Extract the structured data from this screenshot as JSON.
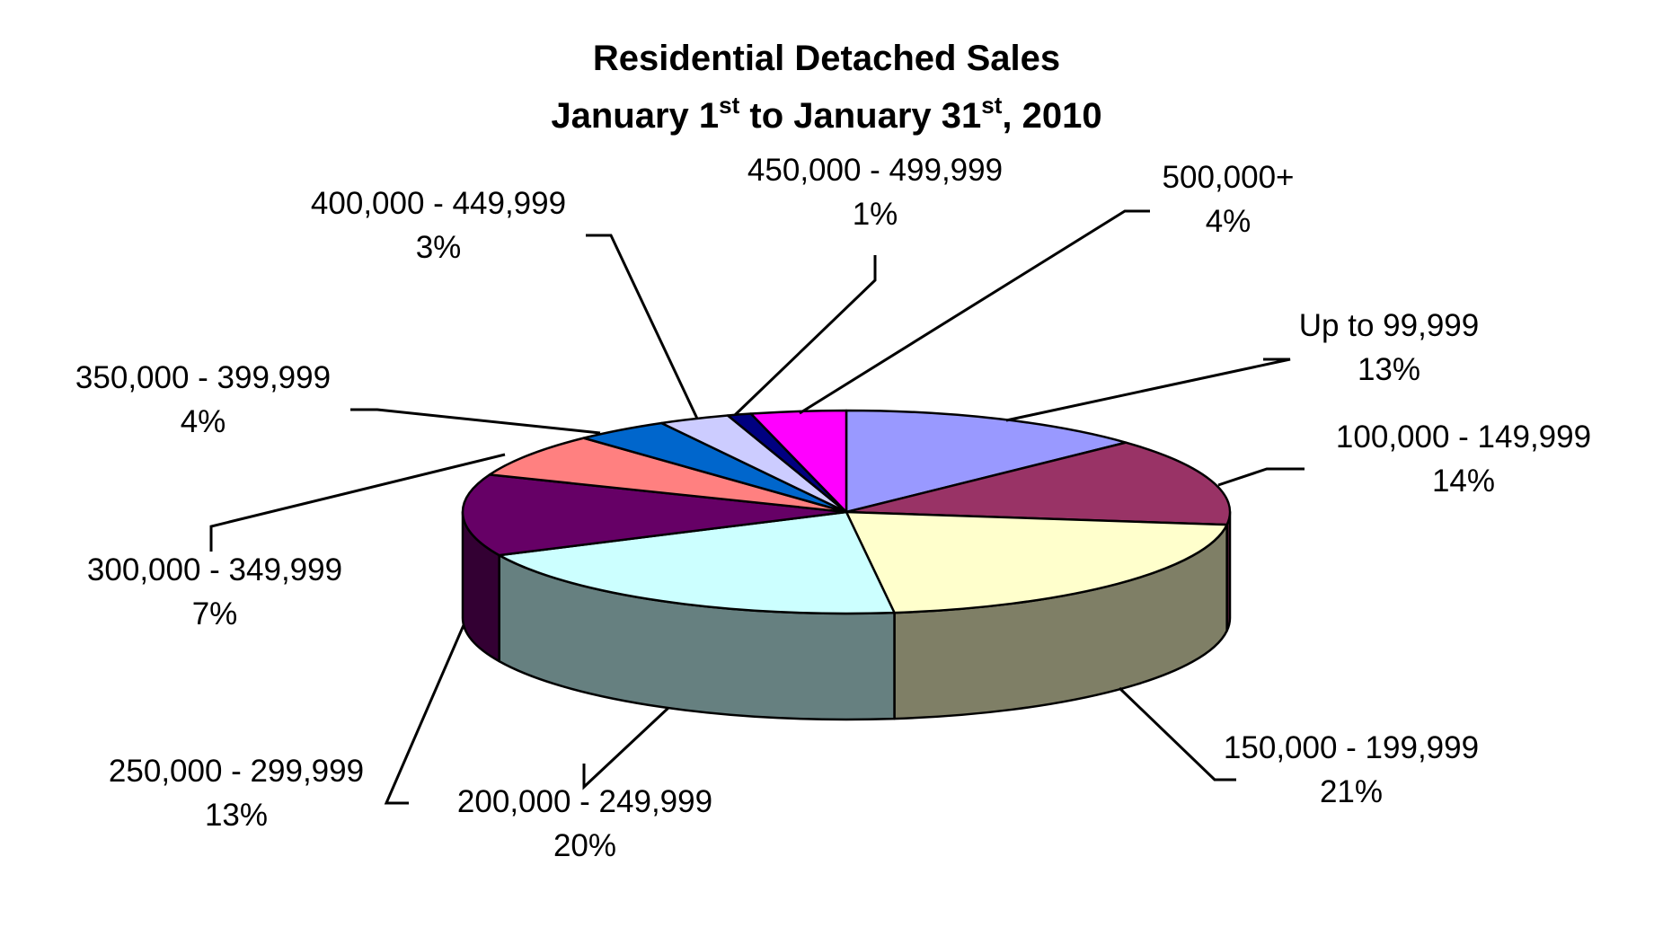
{
  "chart_data": {
    "type": "pie",
    "title_line1": "Residential Detached Sales",
    "title_line2": {
      "part1": "January 1",
      "sup1": "st",
      "part2": " to January 31",
      "sup2": "st",
      "part3": ", 2010"
    },
    "slices": [
      {
        "label": "Up to 99,999",
        "pct_label": "13%",
        "value": 13,
        "color": "#9999ff",
        "side": "#5c5c99"
      },
      {
        "label": "100,000 - 149,999",
        "pct_label": "14%",
        "value": 14,
        "color": "#993366",
        "side": "#5c1f3d"
      },
      {
        "label": "150,000 - 199,999",
        "pct_label": "21%",
        "value": 21,
        "color": "#ffffcc",
        "side": "#7f7f66"
      },
      {
        "label": "200,000 - 249,999",
        "pct_label": "20%",
        "value": 20,
        "color": "#ccffff",
        "side": "#668080"
      },
      {
        "label": "250,000 - 299,999",
        "pct_label": "13%",
        "value": 13,
        "color": "#660066",
        "side": "#330033"
      },
      {
        "label": "300,000 - 349,999",
        "pct_label": "7%",
        "value": 7,
        "color": "#ff8080",
        "side": "#994d4d"
      },
      {
        "label": "350,000 - 399,999",
        "pct_label": "4%",
        "value": 4,
        "color": "#0066cc",
        "side": "#003d7a"
      },
      {
        "label": "400,000 - 449,999",
        "pct_label": "3%",
        "value": 3,
        "color": "#ccccff",
        "side": "#7a7a99"
      },
      {
        "label": "450,000 - 499,999",
        "pct_label": "1%",
        "value": 1,
        "color": "#000080",
        "side": "#00004d"
      },
      {
        "label": "500,000+",
        "pct_label": "4%",
        "value": 4,
        "color": "#ff00ff",
        "side": "#990099"
      }
    ]
  }
}
